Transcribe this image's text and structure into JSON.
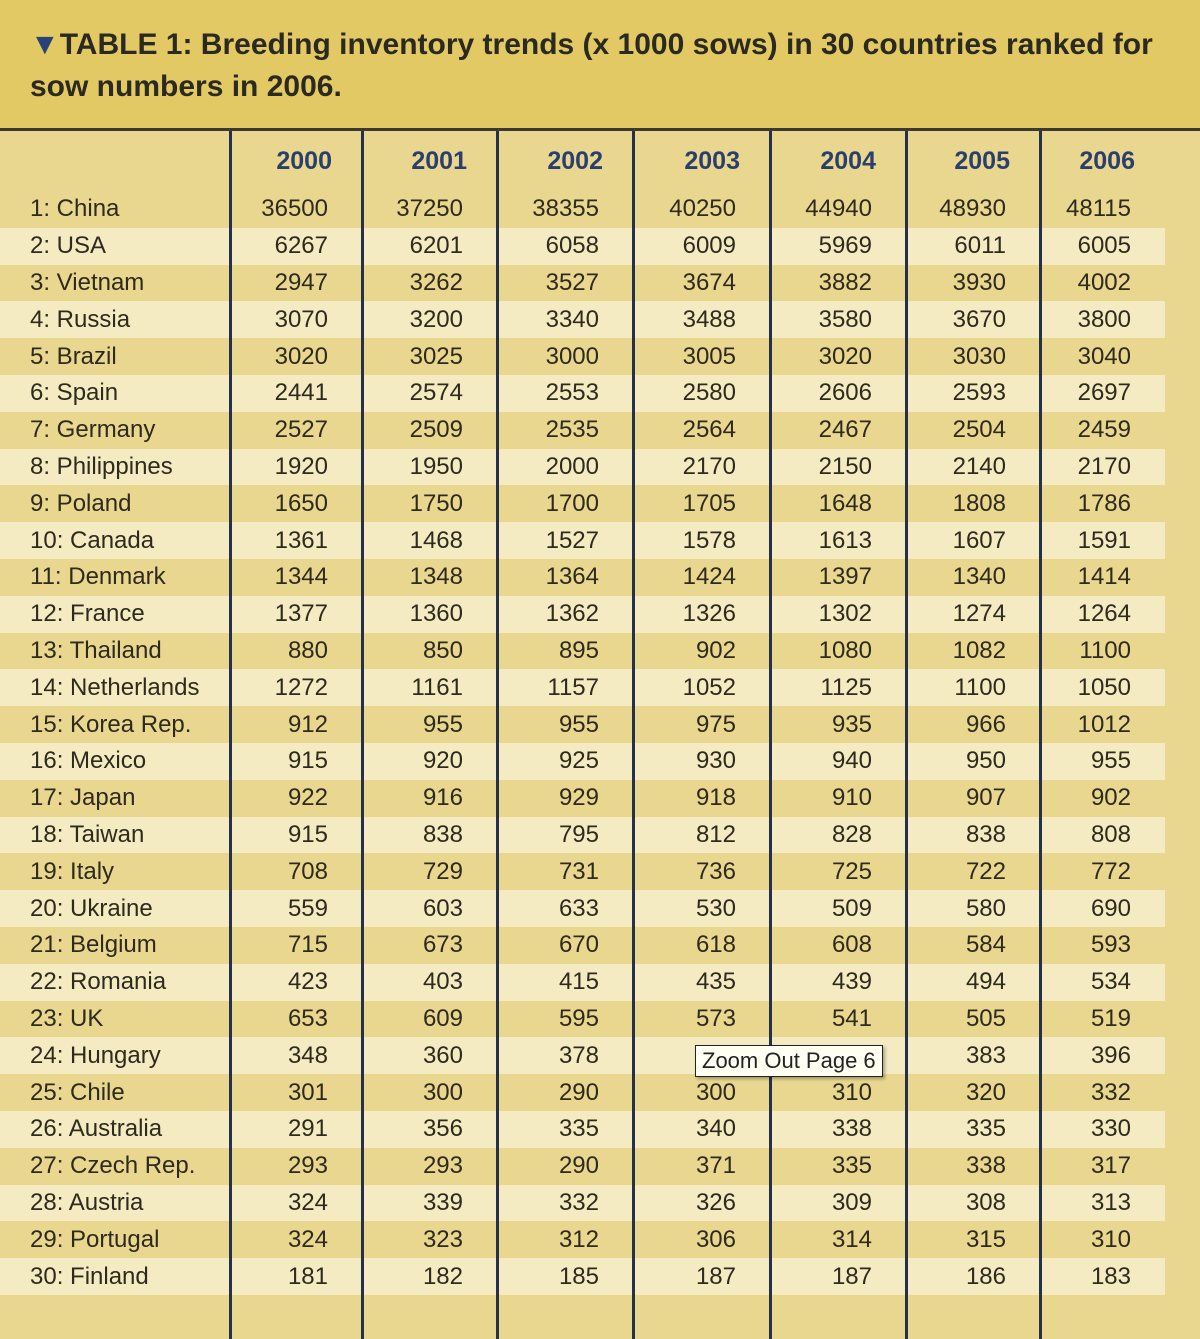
{
  "title": {
    "marker": "▼",
    "text": "TABLE 1: Breeding inventory trends (x 1000 sows) in 30 countries ranked for sow numbers in 2006."
  },
  "tooltip": "Zoom Out Page 6",
  "colors": {
    "header_band": "#e3c963",
    "background": "#e9d68f",
    "stripe": "#f4ebc3",
    "year_text": "#2a3f6e"
  },
  "chart_data": {
    "type": "table",
    "title": "TABLE 1: Breeding inventory trends (x 1000 sows) in 30 countries ranked for sow numbers in 2006.",
    "columns": [
      "2000",
      "2001",
      "2002",
      "2003",
      "2004",
      "2005",
      "2006"
    ],
    "rows": [
      {
        "label": "1: China",
        "values": [
          36500,
          37250,
          38355,
          40250,
          44940,
          48930,
          48115
        ]
      },
      {
        "label": "2: USA",
        "values": [
          6267,
          6201,
          6058,
          6009,
          5969,
          6011,
          6005
        ]
      },
      {
        "label": "3: Vietnam",
        "values": [
          2947,
          3262,
          3527,
          3674,
          3882,
          3930,
          4002
        ]
      },
      {
        "label": "4: Russia",
        "values": [
          3070,
          3200,
          3340,
          3488,
          3580,
          3670,
          3800
        ]
      },
      {
        "label": "5: Brazil",
        "values": [
          3020,
          3025,
          3000,
          3005,
          3020,
          3030,
          3040
        ]
      },
      {
        "label": "6: Spain",
        "values": [
          2441,
          2574,
          2553,
          2580,
          2606,
          2593,
          2697
        ]
      },
      {
        "label": "7: Germany",
        "values": [
          2527,
          2509,
          2535,
          2564,
          2467,
          2504,
          2459
        ]
      },
      {
        "label": "8: Philippines",
        "values": [
          1920,
          1950,
          2000,
          2170,
          2150,
          2140,
          2170
        ]
      },
      {
        "label": "9: Poland",
        "values": [
          1650,
          1750,
          1700,
          1705,
          1648,
          1808,
          1786
        ]
      },
      {
        "label": "10: Canada",
        "values": [
          1361,
          1468,
          1527,
          1578,
          1613,
          1607,
          1591
        ]
      },
      {
        "label": "11: Denmark",
        "values": [
          1344,
          1348,
          1364,
          1424,
          1397,
          1340,
          1414
        ]
      },
      {
        "label": "12: France",
        "values": [
          1377,
          1360,
          1362,
          1326,
          1302,
          1274,
          1264
        ]
      },
      {
        "label": "13: Thailand",
        "values": [
          880,
          850,
          895,
          902,
          1080,
          1082,
          1100
        ]
      },
      {
        "label": "14: Netherlands",
        "values": [
          1272,
          1161,
          1157,
          1052,
          1125,
          1100,
          1050
        ]
      },
      {
        "label": "15: Korea Rep.",
        "values": [
          912,
          955,
          955,
          975,
          935,
          966,
          1012
        ]
      },
      {
        "label": "16: Mexico",
        "values": [
          915,
          920,
          925,
          930,
          940,
          950,
          955
        ]
      },
      {
        "label": "17: Japan",
        "values": [
          922,
          916,
          929,
          918,
          910,
          907,
          902
        ]
      },
      {
        "label": "18: Taiwan",
        "values": [
          915,
          838,
          795,
          812,
          828,
          838,
          808
        ]
      },
      {
        "label": "19: Italy",
        "values": [
          708,
          729,
          731,
          736,
          725,
          722,
          772
        ]
      },
      {
        "label": "20: Ukraine",
        "values": [
          559,
          603,
          633,
          530,
          509,
          580,
          690
        ]
      },
      {
        "label": "21: Belgium",
        "values": [
          715,
          673,
          670,
          618,
          608,
          584,
          593
        ]
      },
      {
        "label": "22: Romania",
        "values": [
          423,
          403,
          415,
          435,
          439,
          494,
          534
        ]
      },
      {
        "label": "23: UK",
        "values": [
          653,
          609,
          595,
          573,
          541,
          505,
          519
        ]
      },
      {
        "label": "24: Hungary",
        "values": [
          348,
          360,
          378,
          null,
          null,
          383,
          396
        ]
      },
      {
        "label": "25: Chile",
        "values": [
          301,
          300,
          290,
          300,
          310,
          320,
          332
        ]
      },
      {
        "label": "26: Australia",
        "values": [
          291,
          356,
          335,
          340,
          338,
          335,
          330
        ]
      },
      {
        "label": "27: Czech Rep.",
        "values": [
          293,
          293,
          290,
          371,
          335,
          338,
          317
        ]
      },
      {
        "label": "28: Austria",
        "values": [
          324,
          339,
          332,
          326,
          309,
          308,
          313
        ]
      },
      {
        "label": "29: Portugal",
        "values": [
          324,
          323,
          312,
          306,
          314,
          315,
          310
        ]
      },
      {
        "label": "30: Finland",
        "values": [
          181,
          182,
          185,
          187,
          187,
          186,
          183
        ]
      }
    ]
  }
}
